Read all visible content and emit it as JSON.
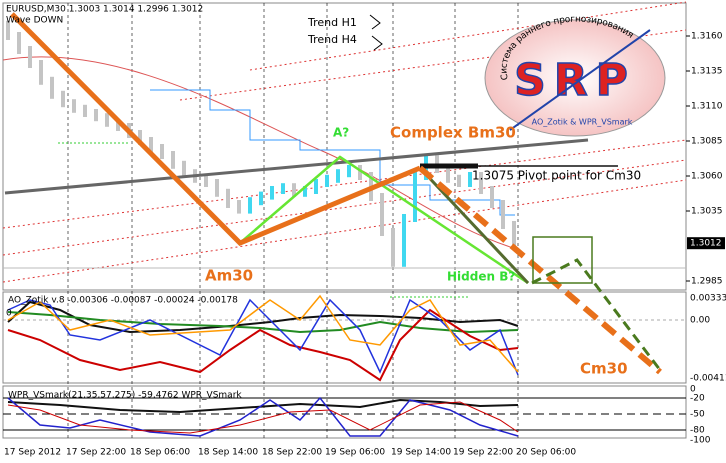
{
  "header": {
    "symbol": "EURUSD,M30  1.3003 1.3014 1.2996 1.3012",
    "signal": "Wave DOWN"
  },
  "annotations": {
    "trend_h1": "Trend H1",
    "trend_h4": "Trend H4",
    "a": "A?",
    "complex_bm30": "Complex Bm30",
    "pivot": "1.3075 Pivot point for Cm30",
    "am30": "Am30",
    "hidden_b": "Hidden B?",
    "cm30": "Cm30"
  },
  "logo": {
    "title": "SRP",
    "arc": "Система раннего прогнозирования",
    "credit": "AO_Zotik & WPR_VSmark"
  },
  "price_axis": {
    "ticks": [
      "1.3160",
      "1.3135",
      "1.3110",
      "1.3085",
      "1.3060",
      "1.3035",
      "1.2985"
    ],
    "current": "1.3012"
  },
  "price": {
    "closes": [
      1.316,
      1.315,
      1.314,
      1.3128,
      1.3118,
      1.3112,
      1.3108,
      1.3105,
      1.3102,
      1.3098,
      1.3095,
      1.309,
      1.3085,
      1.308,
      1.3075,
      1.3068,
      1.3062,
      1.3058,
      1.3055,
      1.3048,
      1.304,
      1.3036,
      1.3042,
      1.3046,
      1.305,
      1.3052,
      1.3048,
      1.305,
      1.3055,
      1.3058,
      1.3062,
      1.3065,
      1.306,
      1.3045,
      1.302,
      1.2998,
      1.303,
      1.306,
      1.3072,
      1.3065,
      1.3058,
      1.3055,
      1.306,
      1.305,
      1.304,
      1.3025,
      1.3012
    ]
  },
  "time_axis": {
    "labels": [
      "17 Sep 2012",
      "17 Sep 22:00",
      "18 Sep 06:00",
      "18 Sep 14:00",
      "18 Sep 22:00",
      "19 Sep 06:00",
      "19 Sep 14:00",
      "19 Sep 22:00",
      "20 Sep 06:00"
    ]
  },
  "ao_panel": {
    "title": "AO_Zotik v.8 -0.00306 -0.00087 -0.00024 -0.00178",
    "zero": "0",
    "ticks": [
      "0.00333",
      "0.00",
      "-0.00411"
    ]
  },
  "wpr_panel": {
    "title": "WPR_VSmark(21,35,57,275) -59.4762  WPR_VSmark",
    "zero": "0",
    "ticks": [
      "-20",
      "-50",
      "-80",
      "-100"
    ]
  }
}
